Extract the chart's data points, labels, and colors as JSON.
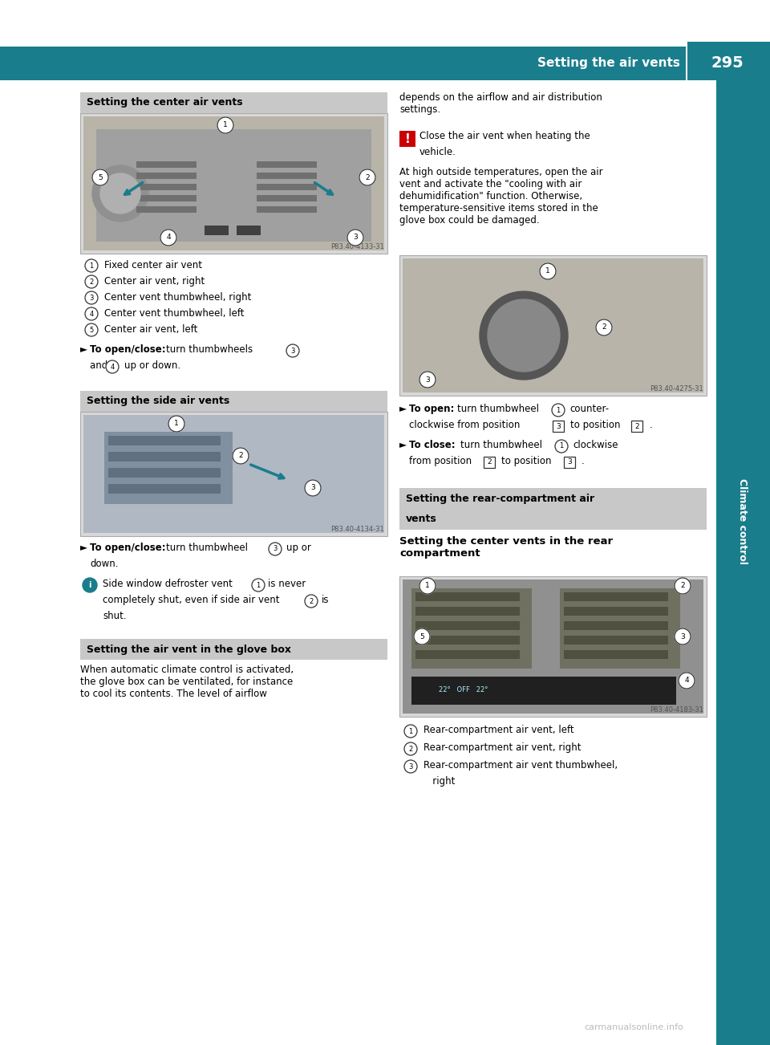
{
  "page_width": 9.6,
  "page_height": 13.02,
  "dpi": 100,
  "bg_color": "#ffffff",
  "header_color": "#1a7d8c",
  "header_text": "Setting the air vents",
  "header_page": "295",
  "header_text_color": "#ffffff",
  "sidebar_color": "#1a7d8c",
  "section_header_bg": "#c8c8c8",
  "warning_icon_color": "#cc0000",
  "info_icon_color": "#1a7d8c",
  "arrow_color": "#1a7d8c",
  "watermark": "carmanualsonline.info",
  "left_items_1": [
    "Fixed center air vent",
    "Center air vent, right",
    "Center vent thumbwheel, right",
    "Center vent thumbwheel, left",
    "Center air vent, left"
  ],
  "left_items_2": [],
  "right_items_rear": [
    "Rear-compartment air vent, left",
    "Rear-compartment air vent, right",
    "Rear-compartment air vent thumbwheel, right"
  ]
}
